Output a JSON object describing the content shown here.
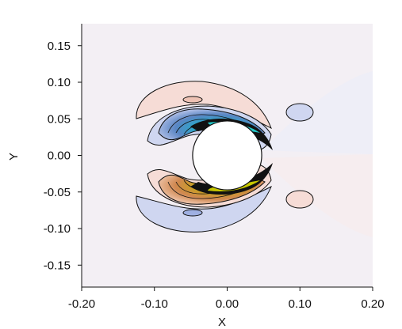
{
  "chart_data": {
    "type": "contour",
    "title": "",
    "xlabel": "X",
    "ylabel": "Y",
    "xlim": [
      -0.2,
      0.2
    ],
    "ylim": [
      -0.18,
      0.18
    ],
    "xticks": [
      {
        "value": -0.2,
        "label": "-0.20"
      },
      {
        "value": -0.1,
        "label": "-0.10"
      },
      {
        "value": 0.0,
        "label": "0.00"
      },
      {
        "value": 0.1,
        "label": "0.10"
      },
      {
        "value": 0.2,
        "label": "0.20"
      }
    ],
    "yticks": [
      {
        "value": 0.15,
        "label": "0.15"
      },
      {
        "value": 0.1,
        "label": "0.10"
      },
      {
        "value": 0.05,
        "label": "0.05"
      },
      {
        "value": 0.0,
        "label": "0.00"
      },
      {
        "value": -0.05,
        "label": "-0.05"
      },
      {
        "value": -0.1,
        "label": "-0.10"
      },
      {
        "value": -0.15,
        "label": "-0.15"
      }
    ],
    "cylinder": {
      "center": [
        0.0,
        0.0
      ],
      "radius": 0.05
    },
    "grid": false,
    "legend": "none",
    "colors": {
      "background": "#f3eff4",
      "negative_light": "#cfd6f0",
      "negative_mid": "#8fa0dc",
      "negative_strong": "#4a7fc0",
      "negative_core": "#22c8c8",
      "positive_light": "#f6dcd6",
      "positive_mid": "#e8b8a0",
      "positive_strong": "#d88a40",
      "positive_core": "#c8c800",
      "contour_line": "#111111"
    }
  }
}
